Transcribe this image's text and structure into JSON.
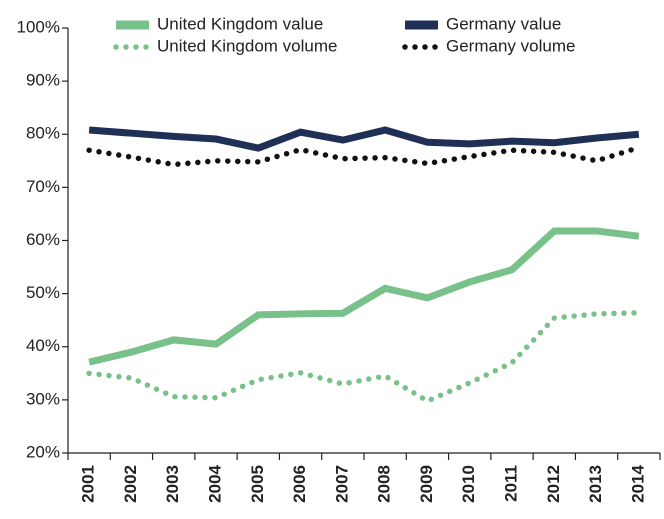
{
  "chart_data": {
    "type": "line",
    "categories": [
      "2001",
      "2002",
      "2003",
      "2004",
      "2005",
      "2006",
      "2007",
      "2008",
      "2009",
      "2010",
      "2011",
      "2012",
      "2013",
      "2014"
    ],
    "series": [
      {
        "name": "United Kingdom value",
        "color": "#79c18a",
        "style": "solid",
        "values": [
          37.1,
          39,
          41.3,
          40.5,
          46,
          46.2,
          46.3,
          51,
          49.2,
          52.2,
          54.5,
          61.8,
          61.8,
          60.8
        ]
      },
      {
        "name": "Germany value",
        "color": "#1f3057",
        "style": "solid",
        "values": [
          80.8,
          80.2,
          79.6,
          79.1,
          77.4,
          80.4,
          78.9,
          80.8,
          78.5,
          78.2,
          78.7,
          78.4,
          79.3,
          80
        ]
      },
      {
        "name": "United Kingdom volume",
        "color": "#79c18a",
        "style": "dotted",
        "values": [
          35,
          34.1,
          30.6,
          30.4,
          33.8,
          35.1,
          33,
          34.5,
          29.8,
          33.2,
          37,
          45.4,
          46.2,
          46.4
        ]
      },
      {
        "name": "Germany volume",
        "color": "#111111",
        "style": "dotted",
        "values": [
          77,
          75.7,
          74.3,
          75,
          74.8,
          77.1,
          75.4,
          75.6,
          74.5,
          75.8,
          77,
          76.6,
          75,
          77.5
        ]
      }
    ],
    "ylim": [
      20,
      100
    ],
    "yticks": [
      {
        "value": 20,
        "label": "20%"
      },
      {
        "value": 30,
        "label": "30%"
      },
      {
        "value": 40,
        "label": "40%"
      },
      {
        "value": 50,
        "label": "50%"
      },
      {
        "value": 60,
        "label": "60%"
      },
      {
        "value": 70,
        "label": "70%"
      },
      {
        "value": 80,
        "label": "80%"
      },
      {
        "value": 90,
        "label": "90%"
      },
      {
        "value": 100,
        "label": "100%"
      }
    ],
    "legend": "top"
  }
}
